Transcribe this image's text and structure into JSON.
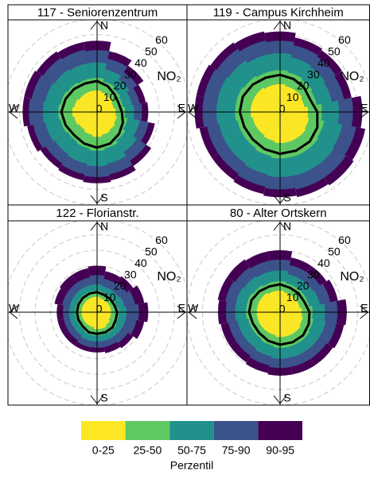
{
  "chart_data": [
    {
      "type": "rose",
      "title": "117 - Seniorenzentrum",
      "r_label": "NO₂",
      "compass": [
        "N",
        "E",
        "S",
        "W"
      ],
      "rlim": [
        0,
        60
      ],
      "rticks": [
        0,
        10,
        20,
        30,
        40,
        50,
        60
      ],
      "x": [
        0,
        22.5,
        45,
        67.5,
        90,
        112.5,
        135,
        157.5,
        180,
        202.5,
        225,
        247.5,
        270,
        292.5,
        315,
        337.5
      ],
      "series": [
        {
          "name": "0-25",
          "color": "#fde725",
          "values": [
            14,
            13,
            12,
            11,
            12,
            13,
            14,
            15,
            16,
            15,
            14,
            15,
            16,
            15,
            14,
            14
          ]
        },
        {
          "name": "25-50",
          "color": "#5ec962",
          "values": [
            22,
            20,
            18,
            17,
            18,
            20,
            22,
            24,
            25,
            24,
            23,
            24,
            25,
            24,
            23,
            22
          ]
        },
        {
          "name": "50-75",
          "color": "#21918c",
          "values": [
            32,
            28,
            25,
            23,
            24,
            28,
            31,
            34,
            35,
            34,
            33,
            34,
            35,
            34,
            33,
            32
          ]
        },
        {
          "name": "75-90",
          "color": "#3b528b",
          "values": [
            40,
            35,
            31,
            28,
            29,
            34,
            38,
            41,
            42,
            41,
            40,
            42,
            44,
            43,
            42,
            41
          ]
        },
        {
          "name": "90-95",
          "color": "#440154",
          "values": [
            46,
            40,
            36,
            32,
            33,
            38,
            42,
            45,
            46,
            45,
            44,
            46,
            48,
            48,
            47,
            46
          ]
        }
      ],
      "outline": {
        "color": "#000000",
        "values": [
          20,
          18,
          16,
          15,
          16,
          18,
          20,
          22,
          23,
          22,
          21,
          22,
          23,
          22,
          21,
          20
        ]
      }
    },
    {
      "type": "rose",
      "title": "119 - Campus Kirchheim",
      "r_label": "NO₂",
      "compass": [
        "N",
        "E",
        "S",
        "W"
      ],
      "rlim": [
        0,
        60
      ],
      "rticks": [
        0,
        10,
        20,
        30,
        40,
        50,
        60
      ],
      "x": [
        0,
        22.5,
        45,
        67.5,
        90,
        112.5,
        135,
        157.5,
        180,
        202.5,
        225,
        247.5,
        270,
        292.5,
        315,
        337.5
      ],
      "series": [
        {
          "name": "0-25",
          "color": "#fde725",
          "values": [
            18,
            17,
            17,
            16,
            18,
            19,
            20,
            20,
            20,
            19,
            18,
            18,
            19,
            19,
            19,
            18
          ]
        },
        {
          "name": "25-50",
          "color": "#5ec962",
          "values": [
            27,
            26,
            25,
            24,
            27,
            29,
            30,
            30,
            30,
            29,
            28,
            28,
            29,
            29,
            28,
            27
          ]
        },
        {
          "name": "50-75",
          "color": "#21918c",
          "values": [
            38,
            36,
            35,
            34,
            38,
            41,
            42,
            42,
            42,
            41,
            40,
            40,
            41,
            41,
            40,
            38
          ]
        },
        {
          "name": "75-90",
          "color": "#3b528b",
          "values": [
            46,
            44,
            43,
            42,
            47,
            50,
            51,
            51,
            50,
            49,
            48,
            48,
            50,
            50,
            49,
            47
          ]
        },
        {
          "name": "90-95",
          "color": "#440154",
          "values": [
            52,
            49,
            48,
            47,
            53,
            56,
            57,
            56,
            55,
            54,
            53,
            53,
            55,
            55,
            54,
            53
          ]
        }
      ],
      "outline": {
        "color": "#000000",
        "values": [
          24,
          23,
          22,
          21,
          24,
          26,
          27,
          27,
          27,
          26,
          25,
          25,
          26,
          26,
          25,
          24
        ]
      }
    },
    {
      "type": "rose",
      "title": "122 - Florianstr.",
      "r_label": "NO₂",
      "compass": [
        "N",
        "E",
        "S",
        "W"
      ],
      "rlim": [
        0,
        60
      ],
      "rticks": [
        0,
        10,
        20,
        30,
        40,
        50,
        60
      ],
      "x": [
        0,
        22.5,
        45,
        67.5,
        90,
        112.5,
        135,
        157.5,
        180,
        202.5,
        225,
        247.5,
        270,
        292.5,
        315,
        337.5
      ],
      "series": [
        {
          "name": "0-25",
          "color": "#fde725",
          "values": [
            10,
            9,
            9,
            9,
            9,
            9,
            10,
            11,
            11,
            10,
            10,
            10,
            10,
            10,
            10,
            10
          ]
        },
        {
          "name": "25-50",
          "color": "#5ec962",
          "values": [
            14,
            13,
            13,
            13,
            14,
            14,
            15,
            15,
            15,
            15,
            14,
            14,
            14,
            14,
            14,
            14
          ]
        },
        {
          "name": "50-75",
          "color": "#21918c",
          "values": [
            18,
            17,
            17,
            18,
            19,
            19,
            19,
            19,
            19,
            19,
            18,
            18,
            18,
            18,
            18,
            18
          ]
        },
        {
          "name": "75-90",
          "color": "#3b528b",
          "values": [
            24,
            22,
            23,
            25,
            27,
            26,
            24,
            23,
            23,
            23,
            22,
            22,
            22,
            23,
            23,
            23
          ]
        },
        {
          "name": "90-95",
          "color": "#440154",
          "values": [
            30,
            27,
            28,
            31,
            33,
            31,
            28,
            27,
            26,
            26,
            26,
            26,
            26,
            28,
            29,
            29
          ]
        }
      ],
      "outline": {
        "color": "#000000",
        "values": [
          13,
          12,
          12,
          12,
          13,
          13,
          14,
          14,
          14,
          14,
          13,
          13,
          13,
          13,
          13,
          13
        ]
      }
    },
    {
      "type": "rose",
      "title": "80 - Alter Ortskern",
      "r_label": "NO₂",
      "compass": [
        "N",
        "E",
        "S",
        "W"
      ],
      "rlim": [
        0,
        60
      ],
      "rticks": [
        0,
        10,
        20,
        30,
        40,
        50,
        60
      ],
      "x": [
        0,
        22.5,
        45,
        67.5,
        90,
        112.5,
        135,
        157.5,
        180,
        202.5,
        225,
        247.5,
        270,
        292.5,
        315,
        337.5
      ],
      "series": [
        {
          "name": "0-25",
          "color": "#fde725",
          "values": [
            14,
            13,
            13,
            13,
            14,
            15,
            16,
            16,
            16,
            15,
            15,
            15,
            15,
            15,
            15,
            14
          ]
        },
        {
          "name": "25-50",
          "color": "#5ec962",
          "values": [
            20,
            19,
            19,
            19,
            21,
            22,
            23,
            23,
            23,
            22,
            21,
            21,
            22,
            22,
            21,
            20
          ]
        },
        {
          "name": "50-75",
          "color": "#21918c",
          "values": [
            27,
            25,
            25,
            26,
            29,
            30,
            30,
            30,
            30,
            29,
            28,
            28,
            29,
            29,
            28,
            27
          ]
        },
        {
          "name": "75-90",
          "color": "#3b528b",
          "values": [
            34,
            31,
            31,
            33,
            37,
            37,
            36,
            36,
            36,
            35,
            34,
            34,
            35,
            36,
            35,
            34
          ]
        },
        {
          "name": "90-95",
          "color": "#440154",
          "values": [
            40,
            36,
            36,
            38,
            43,
            42,
            41,
            41,
            41,
            40,
            39,
            39,
            40,
            41,
            41,
            40
          ]
        }
      ],
      "outline": {
        "color": "#000000",
        "values": [
          18,
          17,
          17,
          17,
          19,
          20,
          21,
          21,
          21,
          20,
          19,
          19,
          20,
          20,
          19,
          18
        ]
      }
    }
  ],
  "legend": {
    "title": "Perzentil"
  }
}
